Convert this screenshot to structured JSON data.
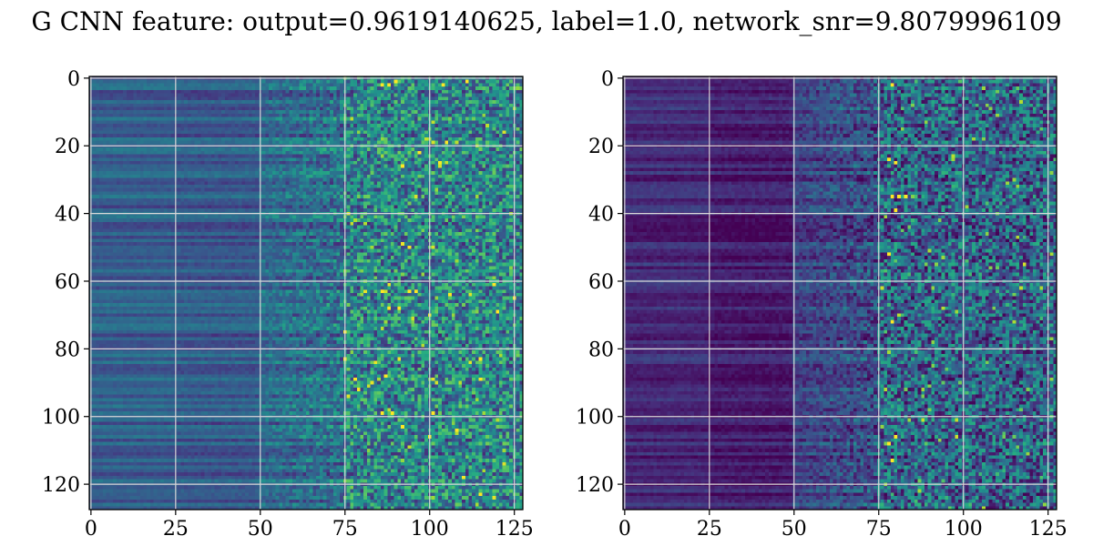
{
  "title": "G CNN feature: output=0.9619140625, label=1.0, network_snr=9.8079996109",
  "chart_data": [
    {
      "type": "heatmap",
      "panel": "left",
      "colormap": "viridis",
      "grid": true,
      "grid_color": "#d9d9d9",
      "xlim": [
        0,
        127
      ],
      "ylim": [
        127,
        0
      ],
      "xticks": [
        0,
        25,
        50,
        75,
        100,
        125
      ],
      "yticks": [
        0,
        20,
        40,
        60,
        80,
        100,
        120
      ],
      "xtick_labels": [
        "0",
        "25",
        "50",
        "75",
        "100",
        "125"
      ],
      "ytick_labels": [
        "0",
        "20",
        "40",
        "60",
        "80",
        "100",
        "120"
      ],
      "shape": [
        128,
        128
      ],
      "value_range": [
        0,
        1
      ],
      "column_profile": {
        "cols_0_25": 0.3,
        "cols_25_50": 0.28,
        "cols_50_75": 0.34,
        "cols_75_127": 0.45
      },
      "hot_pixels": [
        [
          86,
          2
        ],
        [
          88,
          2
        ],
        [
          104,
          2
        ],
        [
          92,
          26
        ],
        [
          86,
          63
        ],
        [
          94,
          63
        ],
        [
          96,
          63
        ],
        [
          88,
          68
        ],
        [
          91,
          68
        ],
        [
          86,
          99
        ],
        [
          89,
          99
        ],
        [
          92,
          103
        ]
      ]
    },
    {
      "type": "heatmap",
      "panel": "right",
      "colormap": "viridis",
      "grid": true,
      "grid_color": "#d9d9d9",
      "xlim": [
        0,
        127
      ],
      "ylim": [
        127,
        0
      ],
      "xticks": [
        0,
        25,
        50,
        75,
        100,
        125
      ],
      "yticks": [
        0,
        20,
        40,
        60,
        80,
        100,
        120
      ],
      "xtick_labels": [
        "0",
        "25",
        "50",
        "75",
        "100",
        "125"
      ],
      "ytick_labels": [
        "0",
        "20",
        "40",
        "60",
        "80",
        "100",
        "120"
      ],
      "shape": [
        128,
        128
      ],
      "value_range": [
        0,
        1
      ],
      "column_profile": {
        "cols_0_25": 0.12,
        "cols_25_50": 0.08,
        "cols_50_75": 0.2,
        "cols_75_127": 0.32
      },
      "hot_pixels": [
        [
          79,
          2
        ],
        [
          78,
          24
        ],
        [
          80,
          25
        ],
        [
          79,
          35
        ],
        [
          81,
          35
        ],
        [
          83,
          35
        ],
        [
          80,
          39
        ],
        [
          78,
          52
        ],
        [
          79,
          72
        ],
        [
          80,
          106
        ],
        [
          78,
          108
        ],
        [
          79,
          113
        ]
      ]
    }
  ]
}
